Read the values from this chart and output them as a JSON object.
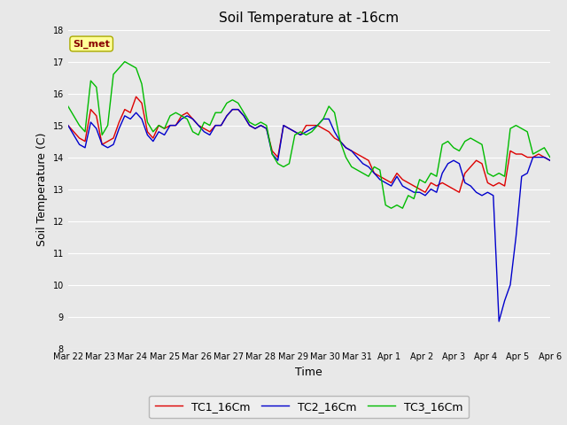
{
  "title": "Soil Temperature at -16cm",
  "xlabel": "Time",
  "ylabel": "Soil Temperature (C)",
  "ylim": [
    8.0,
    18.0
  ],
  "yticks": [
    8.0,
    9.0,
    10.0,
    11.0,
    12.0,
    13.0,
    14.0,
    15.0,
    16.0,
    17.0,
    18.0
  ],
  "xtick_labels": [
    "Mar 22",
    "Mar 23",
    "Mar 24",
    "Mar 25",
    "Mar 26",
    "Mar 27",
    "Mar 28",
    "Mar 29",
    "Mar 30",
    "Mar 31",
    "Apr 1",
    "Apr 2",
    "Apr 3",
    "Apr 4",
    "Apr 5",
    "Apr 6"
  ],
  "legend_labels": [
    "TC1_16Cm",
    "TC2_16Cm",
    "TC3_16Cm"
  ],
  "legend_colors": [
    "#dd0000",
    "#0000cc",
    "#00bb00"
  ],
  "watermark_text": "SI_met",
  "watermark_fgcolor": "#880000",
  "watermark_bgcolor": "#ffff99",
  "bg_color": "#e8e8e8",
  "plot_bg_color": "#e8e8e8",
  "grid_color": "#ffffff",
  "line_width": 1.0,
  "tc1": [
    15.0,
    14.8,
    14.6,
    14.5,
    15.5,
    15.3,
    14.4,
    14.5,
    14.6,
    15.1,
    15.5,
    15.4,
    15.9,
    15.7,
    14.8,
    14.6,
    15.0,
    14.9,
    15.0,
    15.0,
    15.3,
    15.4,
    15.2,
    15.0,
    14.9,
    14.8,
    15.0,
    15.0,
    15.3,
    15.5,
    15.5,
    15.3,
    15.0,
    14.9,
    15.0,
    14.9,
    14.2,
    14.0,
    15.0,
    14.9,
    14.8,
    14.7,
    15.0,
    15.0,
    15.0,
    14.9,
    14.8,
    14.6,
    14.5,
    14.3,
    14.2,
    14.1,
    14.0,
    13.9,
    13.5,
    13.4,
    13.3,
    13.2,
    13.5,
    13.3,
    13.2,
    13.1,
    13.0,
    12.9,
    13.2,
    13.1,
    13.2,
    13.1,
    13.0,
    12.9,
    13.5,
    13.7,
    13.9,
    13.8,
    13.2,
    13.1,
    13.2,
    13.1,
    14.2,
    14.1,
    14.1,
    14.0,
    14.0,
    14.1,
    14.0,
    13.9
  ],
  "tc2": [
    15.0,
    14.7,
    14.4,
    14.3,
    15.1,
    14.9,
    14.4,
    14.3,
    14.4,
    14.9,
    15.3,
    15.2,
    15.4,
    15.2,
    14.7,
    14.5,
    14.8,
    14.7,
    15.0,
    15.0,
    15.2,
    15.3,
    15.2,
    15.0,
    14.8,
    14.7,
    15.0,
    15.0,
    15.3,
    15.5,
    15.5,
    15.3,
    15.0,
    14.9,
    15.0,
    14.9,
    14.1,
    13.9,
    15.0,
    14.9,
    14.8,
    14.7,
    14.8,
    14.9,
    15.0,
    15.2,
    15.2,
    14.8,
    14.5,
    14.3,
    14.2,
    14.0,
    13.8,
    13.7,
    13.5,
    13.3,
    13.2,
    13.1,
    13.4,
    13.1,
    13.0,
    12.9,
    12.9,
    12.8,
    13.0,
    12.9,
    13.5,
    13.8,
    13.9,
    13.8,
    13.2,
    13.1,
    12.9,
    12.8,
    12.9,
    12.8,
    8.85,
    9.5,
    10.0,
    11.5,
    13.4,
    13.5,
    14.0,
    14.0,
    14.0,
    13.9
  ],
  "tc3": [
    15.6,
    15.3,
    15.0,
    14.8,
    16.4,
    16.2,
    14.7,
    15.0,
    16.6,
    16.8,
    17.0,
    16.9,
    16.8,
    16.3,
    15.1,
    14.8,
    15.0,
    14.9,
    15.3,
    15.4,
    15.3,
    15.2,
    14.8,
    14.7,
    15.1,
    15.0,
    15.4,
    15.4,
    15.7,
    15.8,
    15.7,
    15.4,
    15.1,
    15.0,
    15.1,
    15.0,
    14.1,
    13.8,
    13.7,
    13.8,
    14.7,
    14.8,
    14.7,
    14.8,
    15.0,
    15.2,
    15.6,
    15.4,
    14.5,
    14.0,
    13.7,
    13.6,
    13.5,
    13.4,
    13.7,
    13.6,
    12.5,
    12.4,
    12.5,
    12.4,
    12.8,
    12.7,
    13.3,
    13.2,
    13.5,
    13.4,
    14.4,
    14.5,
    14.3,
    14.2,
    14.5,
    14.6,
    14.5,
    14.4,
    13.5,
    13.4,
    13.5,
    13.4,
    14.9,
    15.0,
    14.9,
    14.8,
    14.1,
    14.2,
    14.3,
    14.0
  ]
}
